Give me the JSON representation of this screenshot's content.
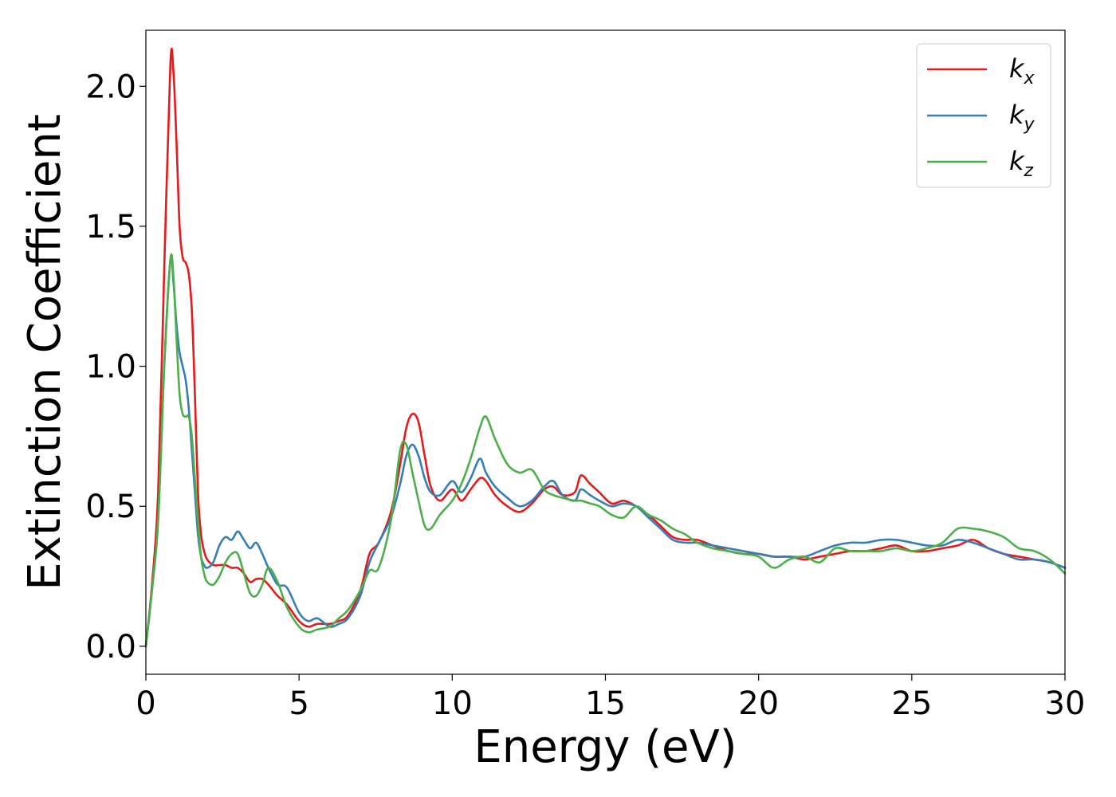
{
  "chart_data": {
    "type": "line",
    "title": "",
    "xlabel": "Energy (eV)",
    "ylabel": "Extinction Coefficient",
    "xlim": [
      0,
      30
    ],
    "ylim": [
      -0.1,
      2.2
    ],
    "xticks": [
      0,
      5,
      10,
      15,
      20,
      25,
      30
    ],
    "xtick_labels": [
      "0",
      "5",
      "10",
      "15",
      "20",
      "25",
      "30"
    ],
    "yticks": [
      0.0,
      0.5,
      1.0,
      1.5,
      2.0
    ],
    "ytick_labels": [
      "0.0",
      "0.5",
      "1.0",
      "1.5",
      "2.0"
    ],
    "grid": false,
    "legend_position": "top-right",
    "series": [
      {
        "name": "k_x",
        "legend_base": "k",
        "legend_sub": "x",
        "color": "#e41a1c",
        "x": [
          0,
          0.2,
          0.4,
          0.6,
          0.8,
          0.9,
          1.0,
          1.1,
          1.2,
          1.3,
          1.4,
          1.5,
          1.6,
          1.7,
          1.8,
          1.9,
          2.0,
          2.2,
          2.4,
          2.6,
          2.8,
          3.0,
          3.2,
          3.4,
          3.6,
          3.8,
          4.0,
          4.3,
          4.6,
          5.0,
          5.3,
          5.6,
          6.0,
          6.3,
          6.6,
          7.0,
          7.3,
          7.6,
          8.0,
          8.3,
          8.5,
          8.7,
          8.9,
          9.1,
          9.3,
          9.6,
          10.0,
          10.3,
          10.6,
          10.9,
          11.1,
          11.4,
          11.8,
          12.2,
          12.6,
          13.0,
          13.3,
          13.6,
          14.0,
          14.2,
          14.5,
          14.8,
          15.2,
          15.6,
          16.0,
          16.4,
          16.8,
          17.2,
          17.6,
          18.0,
          18.5,
          19.0,
          19.5,
          20.0,
          20.5,
          21.0,
          21.5,
          22.0,
          22.5,
          23.0,
          23.5,
          24.0,
          24.5,
          25.0,
          25.5,
          26.0,
          26.5,
          27.0,
          27.5,
          28.0,
          28.5,
          29.0,
          29.5,
          30.0
        ],
        "y": [
          0.0,
          0.22,
          0.55,
          1.35,
          2.08,
          2.05,
          1.8,
          1.5,
          1.39,
          1.37,
          1.33,
          1.2,
          0.9,
          0.55,
          0.4,
          0.34,
          0.31,
          0.29,
          0.29,
          0.29,
          0.28,
          0.28,
          0.26,
          0.23,
          0.24,
          0.24,
          0.22,
          0.18,
          0.15,
          0.09,
          0.07,
          0.08,
          0.08,
          0.09,
          0.11,
          0.2,
          0.33,
          0.37,
          0.48,
          0.65,
          0.78,
          0.83,
          0.8,
          0.68,
          0.57,
          0.52,
          0.56,
          0.52,
          0.56,
          0.6,
          0.59,
          0.54,
          0.5,
          0.48,
          0.51,
          0.56,
          0.57,
          0.54,
          0.55,
          0.61,
          0.58,
          0.55,
          0.51,
          0.52,
          0.5,
          0.47,
          0.43,
          0.39,
          0.38,
          0.38,
          0.36,
          0.34,
          0.33,
          0.33,
          0.32,
          0.32,
          0.31,
          0.32,
          0.33,
          0.34,
          0.34,
          0.35,
          0.36,
          0.34,
          0.34,
          0.35,
          0.36,
          0.38,
          0.35,
          0.33,
          0.32,
          0.31,
          0.3,
          0.28
        ]
      },
      {
        "name": "k_y",
        "legend_base": "k",
        "legend_sub": "y",
        "color": "#377eb8",
        "x": [
          0,
          0.2,
          0.4,
          0.6,
          0.8,
          0.9,
          1.0,
          1.1,
          1.2,
          1.3,
          1.4,
          1.5,
          1.6,
          1.7,
          1.8,
          1.9,
          2.0,
          2.2,
          2.4,
          2.6,
          2.8,
          3.0,
          3.2,
          3.4,
          3.6,
          3.8,
          4.0,
          4.3,
          4.6,
          5.0,
          5.3,
          5.6,
          6.0,
          6.3,
          6.6,
          7.0,
          7.3,
          7.6,
          8.0,
          8.3,
          8.5,
          8.7,
          8.9,
          9.1,
          9.3,
          9.6,
          10.0,
          10.3,
          10.6,
          10.9,
          11.1,
          11.4,
          11.8,
          12.2,
          12.6,
          13.0,
          13.3,
          13.6,
          14.0,
          14.2,
          14.5,
          14.8,
          15.2,
          15.6,
          16.0,
          16.4,
          16.8,
          17.2,
          17.6,
          18.0,
          18.5,
          19.0,
          19.5,
          20.0,
          20.5,
          21.0,
          21.5,
          22.0,
          22.5,
          23.0,
          23.5,
          24.0,
          24.5,
          25.0,
          25.5,
          26.0,
          26.5,
          27.0,
          27.5,
          28.0,
          28.5,
          29.0,
          29.5,
          30.0
        ],
        "y": [
          0.0,
          0.2,
          0.45,
          1.0,
          1.38,
          1.3,
          1.15,
          1.05,
          1.0,
          0.95,
          0.85,
          0.7,
          0.55,
          0.4,
          0.32,
          0.29,
          0.28,
          0.3,
          0.36,
          0.39,
          0.38,
          0.41,
          0.38,
          0.35,
          0.37,
          0.33,
          0.28,
          0.22,
          0.21,
          0.12,
          0.09,
          0.1,
          0.07,
          0.08,
          0.1,
          0.18,
          0.3,
          0.37,
          0.46,
          0.58,
          0.68,
          0.72,
          0.68,
          0.6,
          0.55,
          0.54,
          0.59,
          0.55,
          0.6,
          0.67,
          0.62,
          0.57,
          0.53,
          0.5,
          0.52,
          0.57,
          0.59,
          0.54,
          0.52,
          0.56,
          0.54,
          0.52,
          0.5,
          0.51,
          0.5,
          0.46,
          0.42,
          0.38,
          0.37,
          0.37,
          0.36,
          0.35,
          0.34,
          0.33,
          0.32,
          0.32,
          0.32,
          0.34,
          0.36,
          0.37,
          0.37,
          0.38,
          0.38,
          0.37,
          0.36,
          0.36,
          0.38,
          0.37,
          0.35,
          0.33,
          0.31,
          0.31,
          0.3,
          0.28
        ]
      },
      {
        "name": "k_z",
        "legend_base": "k",
        "legend_sub": "z",
        "color": "#4daf4a",
        "x": [
          0,
          0.2,
          0.4,
          0.6,
          0.8,
          0.9,
          1.0,
          1.1,
          1.2,
          1.3,
          1.4,
          1.5,
          1.6,
          1.7,
          1.8,
          1.9,
          2.0,
          2.2,
          2.4,
          2.6,
          2.8,
          3.0,
          3.2,
          3.4,
          3.6,
          3.8,
          4.0,
          4.3,
          4.6,
          5.0,
          5.3,
          5.6,
          6.0,
          6.3,
          6.6,
          7.0,
          7.3,
          7.6,
          8.0,
          8.3,
          8.5,
          8.7,
          8.9,
          9.1,
          9.3,
          9.6,
          10.0,
          10.3,
          10.6,
          10.9,
          11.1,
          11.4,
          11.8,
          12.2,
          12.6,
          13.0,
          13.3,
          13.6,
          14.0,
          14.2,
          14.5,
          14.8,
          15.2,
          15.6,
          16.0,
          16.4,
          16.8,
          17.2,
          17.6,
          18.0,
          18.5,
          19.0,
          19.5,
          20.0,
          20.5,
          21.0,
          21.5,
          22.0,
          22.5,
          23.0,
          23.5,
          24.0,
          24.5,
          25.0,
          25.5,
          26.0,
          26.5,
          27.0,
          27.5,
          28.0,
          28.5,
          29.0,
          29.5,
          30.0
        ],
        "y": [
          0.0,
          0.2,
          0.45,
          1.0,
          1.38,
          1.32,
          1.1,
          0.9,
          0.83,
          0.82,
          0.82,
          0.75,
          0.6,
          0.45,
          0.32,
          0.26,
          0.23,
          0.22,
          0.25,
          0.3,
          0.33,
          0.33,
          0.26,
          0.19,
          0.18,
          0.22,
          0.28,
          0.23,
          0.14,
          0.07,
          0.05,
          0.06,
          0.07,
          0.1,
          0.13,
          0.2,
          0.27,
          0.28,
          0.45,
          0.7,
          0.72,
          0.62,
          0.52,
          0.43,
          0.42,
          0.47,
          0.52,
          0.58,
          0.67,
          0.78,
          0.82,
          0.74,
          0.65,
          0.62,
          0.63,
          0.56,
          0.54,
          0.53,
          0.52,
          0.52,
          0.51,
          0.5,
          0.47,
          0.46,
          0.5,
          0.47,
          0.45,
          0.42,
          0.4,
          0.37,
          0.35,
          0.34,
          0.33,
          0.32,
          0.28,
          0.31,
          0.32,
          0.3,
          0.35,
          0.34,
          0.34,
          0.34,
          0.35,
          0.34,
          0.35,
          0.37,
          0.42,
          0.42,
          0.41,
          0.39,
          0.35,
          0.34,
          0.31,
          0.26
        ]
      }
    ]
  }
}
